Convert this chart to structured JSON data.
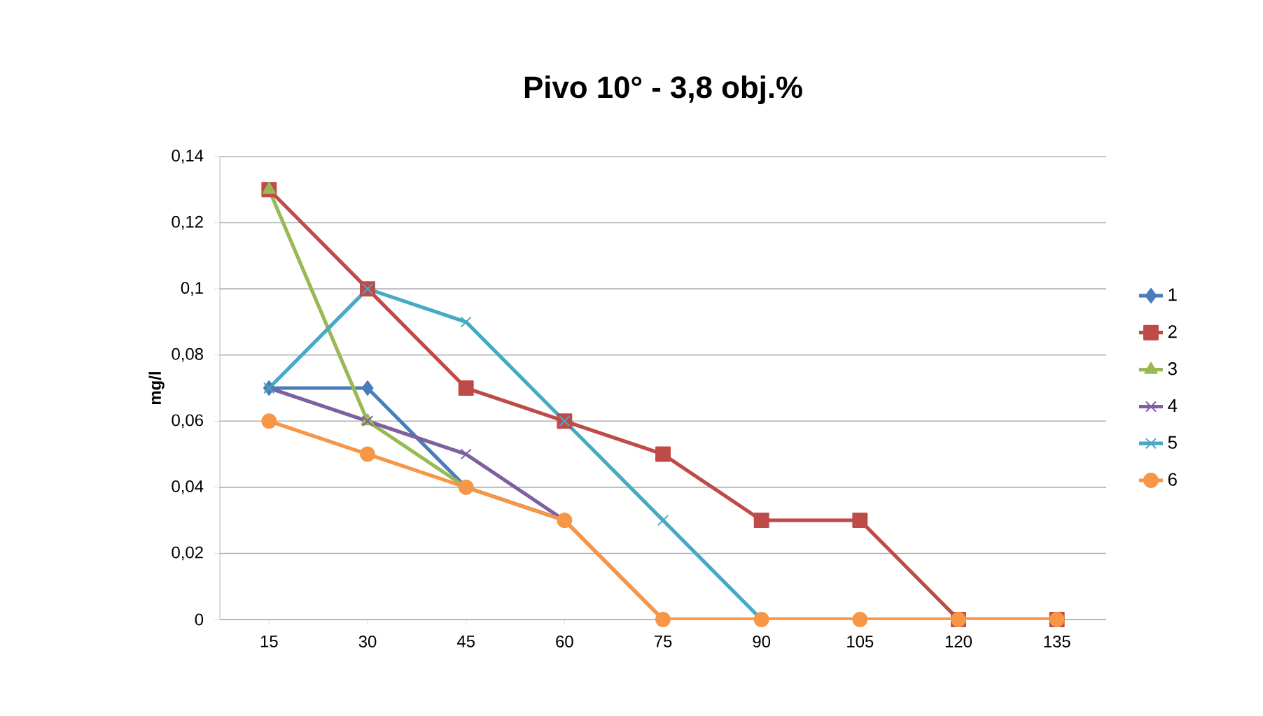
{
  "chart_data": {
    "type": "line",
    "title": "Pivo 10°  - 3,8 obj.%",
    "ylabel": "mg/l",
    "categories": [
      "15",
      "30",
      "45",
      "60",
      "75",
      "90",
      "105",
      "120",
      "135"
    ],
    "ylim": [
      0,
      0.14
    ],
    "yticks": [
      0,
      {
        "value": 0.02,
        "label": "0,02"
      },
      {
        "value": 0.04,
        "label": "0,04"
      },
      {
        "value": 0.06,
        "label": "0,06"
      },
      {
        "value": 0.08,
        "label": "0,08"
      },
      {
        "value": 0.1,
        "label": "0,1"
      },
      {
        "value": 0.12,
        "label": "0,12"
      },
      {
        "value": 0.14,
        "label": "0,14"
      }
    ],
    "grid": "y",
    "legend": "right",
    "line_style": "solid",
    "series": [
      {
        "name": "1",
        "color": "#4a7ebb",
        "marker": "diamond",
        "values": [
          0.07,
          0.07,
          0.04,
          0.03,
          null,
          null,
          null,
          null,
          null
        ]
      },
      {
        "name": "2",
        "color": "#be4b48",
        "marker": "square",
        "values": [
          0.13,
          0.1,
          0.07,
          0.06,
          0.05,
          0.03,
          0.03,
          0,
          0
        ]
      },
      {
        "name": "3",
        "color": "#98b954",
        "marker": "triangle",
        "values": [
          0.13,
          0.06,
          0.04,
          0.03,
          null,
          null,
          null,
          null,
          null
        ]
      },
      {
        "name": "4",
        "color": "#7d60a0",
        "marker": "cross",
        "values": [
          0.07,
          0.06,
          0.05,
          0.03,
          0,
          0,
          0,
          0,
          0
        ]
      },
      {
        "name": "5",
        "color": "#46aac5",
        "marker": "cross",
        "values": [
          0.07,
          0.1,
          0.09,
          0.06,
          0.03,
          0,
          0,
          null,
          null
        ]
      },
      {
        "name": "6",
        "color": "#f79646",
        "marker": "circle",
        "values": [
          0.06,
          0.05,
          0.04,
          0.03,
          0,
          0,
          0,
          0,
          0
        ]
      }
    ]
  }
}
